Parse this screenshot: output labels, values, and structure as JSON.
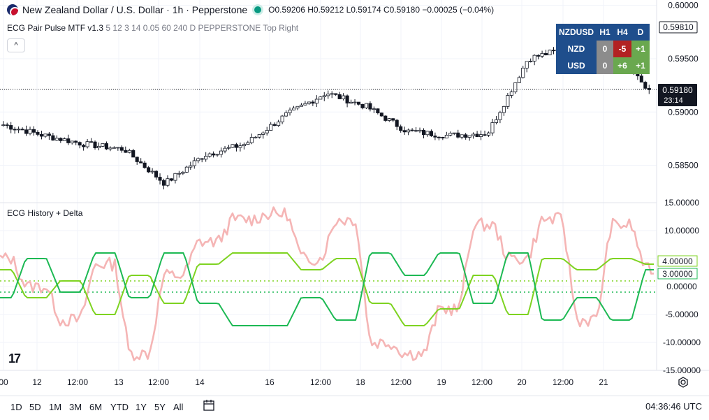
{
  "header": {
    "symbol_title": "New Zealand Dollar / U.S. Dollar · 1h · Pepperstone",
    "ohlc": "O0.59206 H0.59212 L0.59174 C0.59180 −0.00025 (−0.04%)"
  },
  "indicator1": {
    "name": "ECG Pair Pulse MTF v1.3",
    "params": "5 12 3 14 0.05 60 240 D PEPPERSTONE Top Right"
  },
  "indicator2": {
    "name": "ECG History + Delta"
  },
  "collapse_icon": "chevron-up-icon",
  "price_axis": {
    "ticks": [
      "0.60000",
      "0.59500",
      "0.59000",
      "0.58500"
    ],
    "current_price": "0.59180",
    "countdown": "23:14",
    "highlight_price": "0.59810"
  },
  "osc_axis": {
    "ticks": [
      "15.00000",
      "10.00000",
      "5.00000",
      "0.00000",
      "-5.00000",
      "-10.00000",
      "-15.00000"
    ],
    "label_a": "4.00000",
    "label_b": "3.00000"
  },
  "time_axis": [
    "00",
    "12",
    "12:00",
    "13",
    "12:00",
    "14",
    "16",
    "12:00",
    "18",
    "12:00",
    "19",
    "12:00",
    "20",
    "12:00",
    "21"
  ],
  "mtf_table": {
    "header": [
      "NZDUSD",
      "H1",
      "H4",
      "D"
    ],
    "rows": [
      {
        "label": "NZD",
        "h1": "0",
        "h4": "-5",
        "d": "+1"
      },
      {
        "label": "USD",
        "h1": "0",
        "h4": "+6",
        "d": "+1"
      }
    ]
  },
  "range_buttons": [
    "1D",
    "5D",
    "1M",
    "3M",
    "6M",
    "YTD",
    "1Y",
    "5Y",
    "All"
  ],
  "clock": "04:36:46 UTC",
  "colors": {
    "up": "#089981",
    "down": "#131722",
    "pink": "#f5b5b5",
    "green_light": "#7ed321",
    "green_dark": "#1db954",
    "table_bg": "#1f4e8c",
    "table_gray": "#8c8c8c",
    "table_red": "#b22222",
    "table_green": "#6aa84f"
  },
  "chart_data": [
    {
      "type": "candlestick",
      "title": "New Zealand Dollar / U.S. Dollar · 1h · Pepperstone",
      "ylim": [
        0.5815,
        0.6005
      ],
      "yticks": [
        0.6,
        0.595,
        0.59,
        0.585
      ],
      "x": [
        "11 12:00",
        "12 00:00",
        "12 12:00",
        "13 00:00",
        "13 12:00",
        "14 00:00",
        "14 12:00",
        "16 00:00",
        "16 12:00",
        "18 00:00",
        "18 12:00",
        "19 00:00",
        "19 12:00",
        "20 00:00",
        "20 12:00",
        "21 00:00",
        "21 04:00"
      ],
      "close": [
        0.5888,
        0.5878,
        0.587,
        0.5865,
        0.5833,
        0.586,
        0.587,
        0.5897,
        0.5918,
        0.5905,
        0.5882,
        0.5878,
        0.588,
        0.595,
        0.596,
        0.5965,
        0.5918
      ]
    },
    {
      "type": "line",
      "title": "ECG History + Delta",
      "ylim": [
        -15,
        15
      ],
      "series": [
        {
          "color": "#f5b5b5",
          "values": [
            5,
            0,
            -6,
            4,
            -12,
            2,
            8,
            12,
            13,
            5,
            12,
            -10,
            -12,
            -4,
            11,
            5,
            12,
            -6,
            11,
            3
          ]
        },
        {
          "color": "#7ed321",
          "values": [
            3,
            -2,
            1,
            -5,
            2,
            -3,
            4,
            6,
            6,
            3,
            5,
            -3,
            -7,
            -4,
            2,
            -5,
            5,
            3,
            5,
            4
          ]
        },
        {
          "color": "#1db954",
          "values": [
            -2,
            5,
            -1,
            6,
            -2,
            6,
            -3,
            -7,
            -7,
            -2,
            -6,
            6,
            2,
            6,
            -3,
            6,
            -6,
            -2,
            -6,
            3
          ]
        }
      ]
    }
  ]
}
